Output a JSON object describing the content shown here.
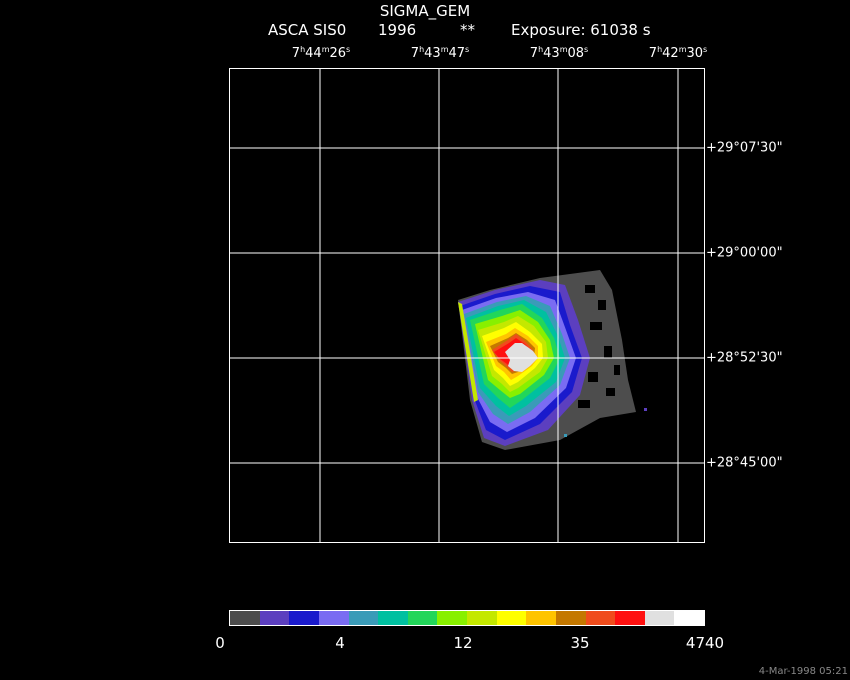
{
  "header": {
    "object": "SIGMA_GEM",
    "instrument": "ASCA SIS0",
    "year": "1996",
    "stars": "**",
    "exposure": "Exposure: 61038 s"
  },
  "ra_ticks": [
    {
      "h": "7",
      "m": "44",
      "s": "26"
    },
    {
      "h": "7",
      "m": "43",
      "s": "47"
    },
    {
      "h": "7",
      "m": "43",
      "s": "08"
    },
    {
      "h": "7",
      "m": "42",
      "s": "30"
    }
  ],
  "dec_ticks": [
    "+29°07'30\"",
    "+29°00'00\"",
    "+28°52'30\"",
    "+28°45'00\""
  ],
  "colorbar": {
    "labels": [
      "0",
      "4",
      "12",
      "35",
      "4740"
    ],
    "colors": [
      "#4d4d4d",
      "#5c3fbf",
      "#1a1acc",
      "#7a6cf2",
      "#3a9bb8",
      "#00c0a0",
      "#22d65a",
      "#88f000",
      "#c4e800",
      "#ffff00",
      "#ffc400",
      "#c47800",
      "#f04c1c",
      "#ff1010",
      "#e0e0e0",
      "#ffffff"
    ]
  },
  "timestamp": "4-Mar-1998 05:21"
}
